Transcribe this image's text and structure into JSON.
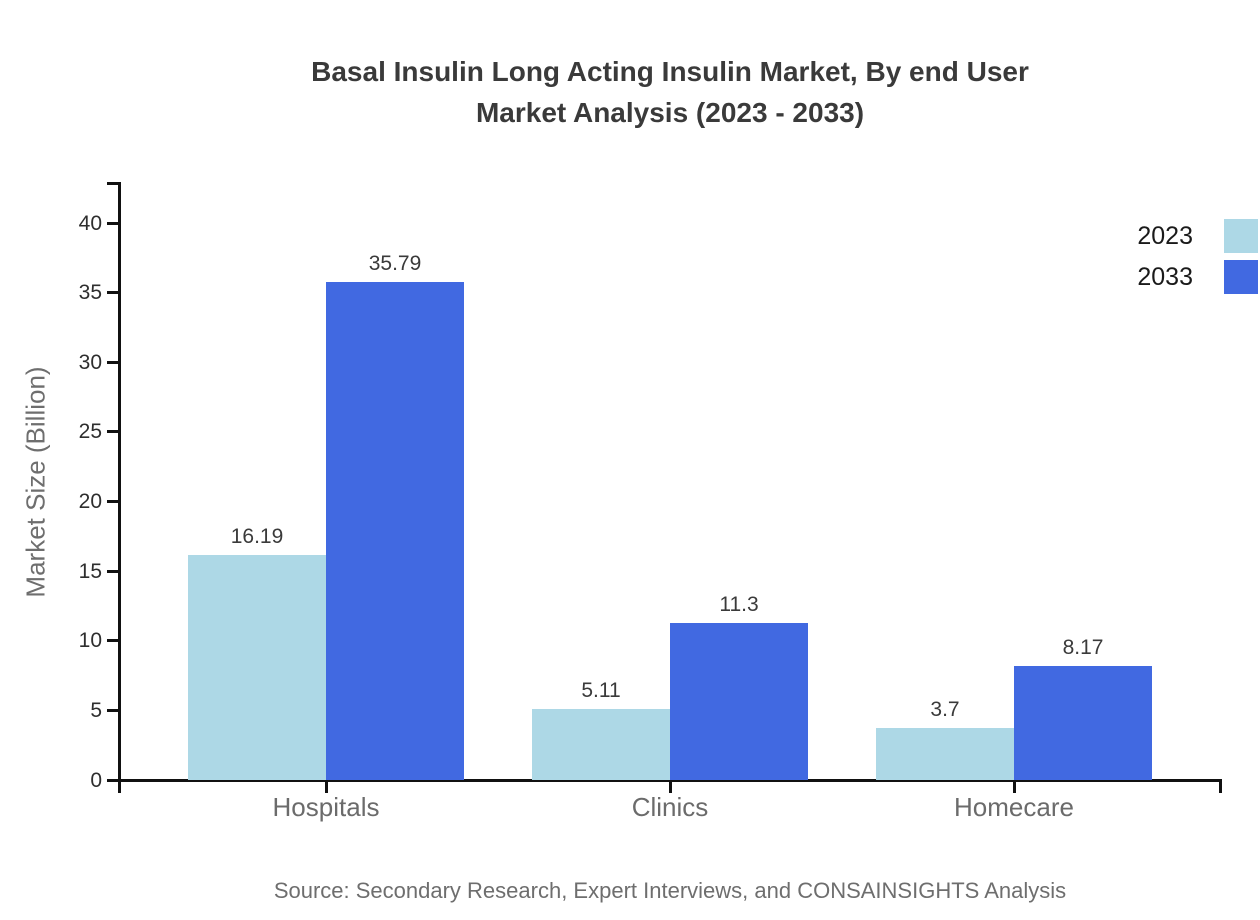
{
  "title": {
    "line1": "Basal Insulin Long Acting Insulin Market, By end User",
    "line2": "Market Analysis (2023 - 2033)"
  },
  "source": "Source: Secondary Research, Expert Interviews, and CONSAINSIGHTS Analysis",
  "chart_data": {
    "type": "bar",
    "title": "Basal Insulin Long Acting Insulin Market, By end User Market Analysis (2023 - 2033)",
    "categories": [
      "Hospitals",
      "Clinics",
      "Homecare"
    ],
    "series": [
      {
        "name": "2023",
        "color": "#add8e6",
        "values": [
          16.19,
          5.11,
          3.7
        ]
      },
      {
        "name": "2033",
        "color": "#4169e1",
        "values": [
          35.79,
          11.3,
          8.17
        ]
      }
    ],
    "xlabel": "",
    "ylabel": "Market Size (Billion)",
    "ylim": [
      0,
      43
    ],
    "yticks": [
      0,
      5,
      10,
      15,
      20,
      25,
      30,
      35,
      40
    ],
    "grid": false,
    "legend_position": "top-right",
    "value_label_format": "as-written: 16.19, 35.79, 5.11, 11.3, 3.7, 8.17"
  },
  "colors": {
    "title_text": "#3a3a3a",
    "axis": "#111111",
    "tick_label": "#2e2e2e",
    "category_label": "#6b6b6b",
    "muted_text": "#6e6e6e",
    "series_2023": "#add8e6",
    "series_2033": "#4169e1"
  }
}
